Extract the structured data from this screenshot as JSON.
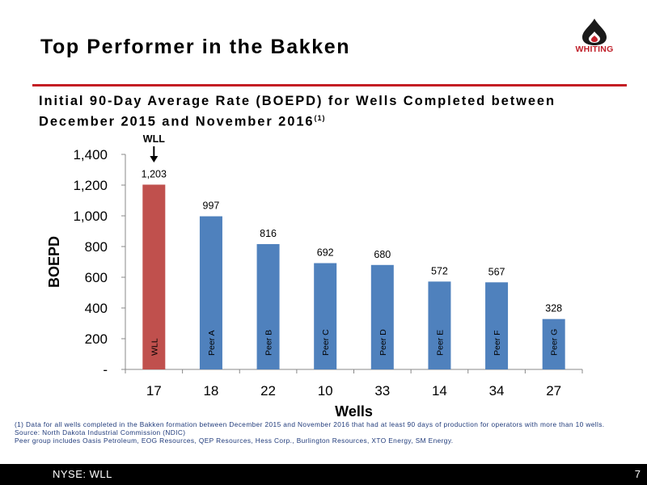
{
  "slide": {
    "title": "Top Performer in the Bakken",
    "subtitle": "Initial 90-Day Average Rate (BOEPD) for Wells Completed between December 2015 and November 2016",
    "subtitle_note_ref": "(1)",
    "logo_text": "WHITING"
  },
  "footnotes": {
    "line1": "(1) Data for all wells completed in the Bakken formation between December 2015 and November 2016 that had at least 90 days of production for operators with more than 10 wells.",
    "line2": "Source: North Dakota Industrial Commission (NDIC)",
    "line3": "Peer group includes Oasis Petroleum, EOG Resources, QEP Resources, Hess Corp., Burlington Resources, XTO Energy, SM Energy."
  },
  "footer": {
    "ticker": "NYSE: WLL",
    "page_number": "7"
  },
  "colors": {
    "highlight_bar": "#c0504d",
    "peer_bar": "#4f81bd",
    "accent_rule": "#c41e24",
    "footer_bg": "#000000",
    "footnote_text": "#1f3a7a"
  },
  "chart_data": {
    "type": "bar",
    "categories": [
      "WLL",
      "Peer A",
      "Peer B",
      "Peer C",
      "Peer D",
      "Peer E",
      "Peer F",
      "Peer G"
    ],
    "values": [
      1203,
      997,
      816,
      692,
      680,
      572,
      567,
      328
    ],
    "value_labels": [
      "1,203",
      "997",
      "816",
      "692",
      "680",
      "572",
      "567",
      "328"
    ],
    "wells": [
      "17",
      "18",
      "22",
      "10",
      "33",
      "14",
      "34",
      "27"
    ],
    "highlight_index": 0,
    "callout": "WLL",
    "xlabel": "Wells",
    "ylabel": "BOEPD",
    "ylim": [
      0,
      1400
    ],
    "yticks": [
      0,
      200,
      400,
      600,
      800,
      1000,
      1200,
      1400
    ],
    "ytick_labels": [
      "-",
      "200",
      "400",
      "600",
      "800",
      "1,000",
      "1,200",
      "1,400"
    ],
    "grid": false,
    "legend": "none"
  }
}
